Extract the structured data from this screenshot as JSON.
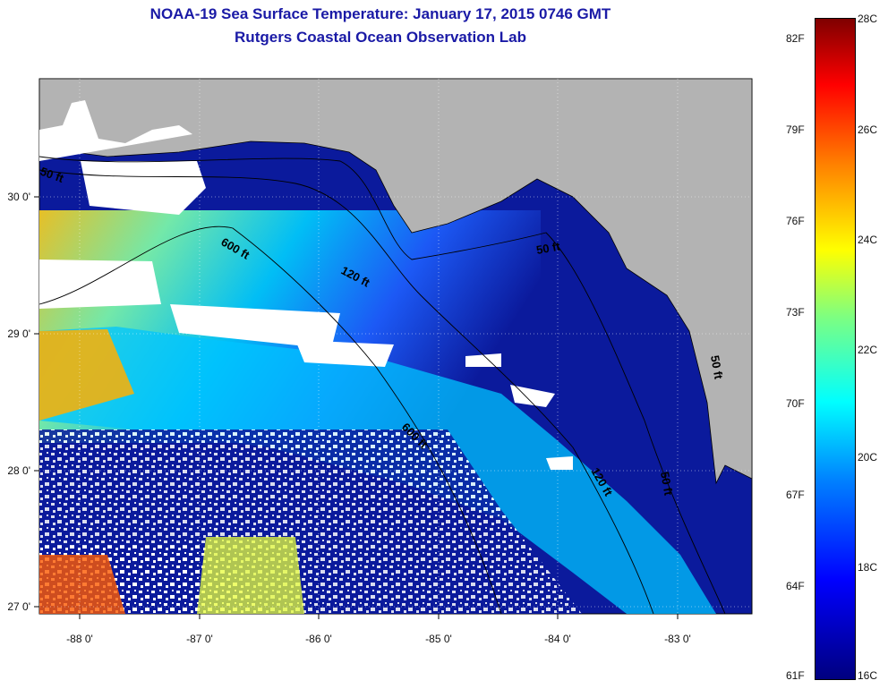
{
  "title_line1": "NOAA-19 Sea Surface Temperature:  January 17, 2015 0746 GMT",
  "title_line2": "Rutgers Coastal Ocean Observation Lab",
  "axes": {
    "lon_ticks": [
      "-88 0'",
      "-87 0'",
      "-86 0'",
      "-85 0'",
      "-84 0'",
      "-83 0'"
    ],
    "lat_ticks": [
      "30 0'",
      "29 0'",
      "28 0'",
      "27 0'"
    ]
  },
  "contour_labels": [
    "600 ft",
    "120 ft",
    "50 ft",
    "600 ft",
    "120 ft",
    "50 ft",
    "50 ft",
    "50 ft"
  ],
  "colorbar": {
    "fahrenheit": [
      "82F",
      "79F",
      "76F",
      "73F",
      "70F",
      "67F",
      "64F",
      "61F"
    ],
    "celsius": [
      "28C",
      "26C",
      "24C",
      "22C",
      "20C",
      "18C",
      "16C"
    ]
  },
  "colors": {
    "land": "#b3b3b3",
    "cloud": "#ffffff",
    "cold_water": "#0b1a9c",
    "title": "#1a1aa6"
  }
}
